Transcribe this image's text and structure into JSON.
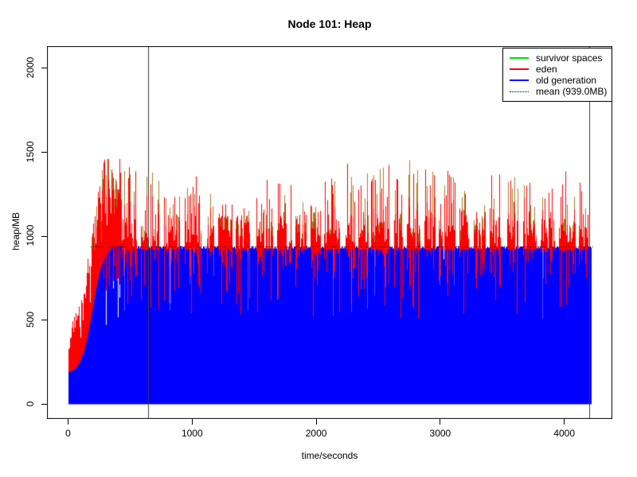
{
  "chart_data": {
    "type": "line",
    "title": "Node 101: Heap",
    "xlabel": "time/seconds",
    "ylabel": "heap/MB",
    "xlim": [
      0,
      4215
    ],
    "ylim": [
      0,
      2130
    ],
    "xticks": [
      0,
      1000,
      2000,
      3000,
      4000
    ],
    "yticks": [
      0,
      500,
      1000,
      1500,
      2000
    ],
    "grid": false,
    "legend_position": "topright",
    "series": [
      {
        "name": "survivor spaces",
        "color": "#00dd00",
        "overlap_render_color": "#a87d2a"
      },
      {
        "name": "eden",
        "color": "#ff0000"
      },
      {
        "name": "old generation",
        "color": "#0000ff"
      }
    ],
    "mean_line": {
      "value": 939.0,
      "label": "mean (939.0MB)",
      "style": "dotted",
      "color": "#000000",
      "start_seconds": 180
    },
    "vlines": {
      "x": [
        645,
        4200
      ],
      "color": "#3c3c3c"
    },
    "pattern": {
      "duration_seconds": 4215,
      "ramp_end_seconds": 430,
      "old_gen_start_mb": 180,
      "old_gen_plateau_mb": 935,
      "eden_base_spike_mb": 1160,
      "eden_spike_max_mb": 1470,
      "gc_notch_min_mb": 460
    },
    "legend": {
      "items": [
        {
          "label": "survivor spaces",
          "color": "#00dd00",
          "style": "solid"
        },
        {
          "label": "eden",
          "color": "#ff0000",
          "style": "solid"
        },
        {
          "label": "old generation",
          "color": "#0000ff",
          "style": "solid"
        },
        {
          "label": "mean (939.0MB)",
          "color": "#000000",
          "style": "dotted"
        }
      ]
    }
  }
}
